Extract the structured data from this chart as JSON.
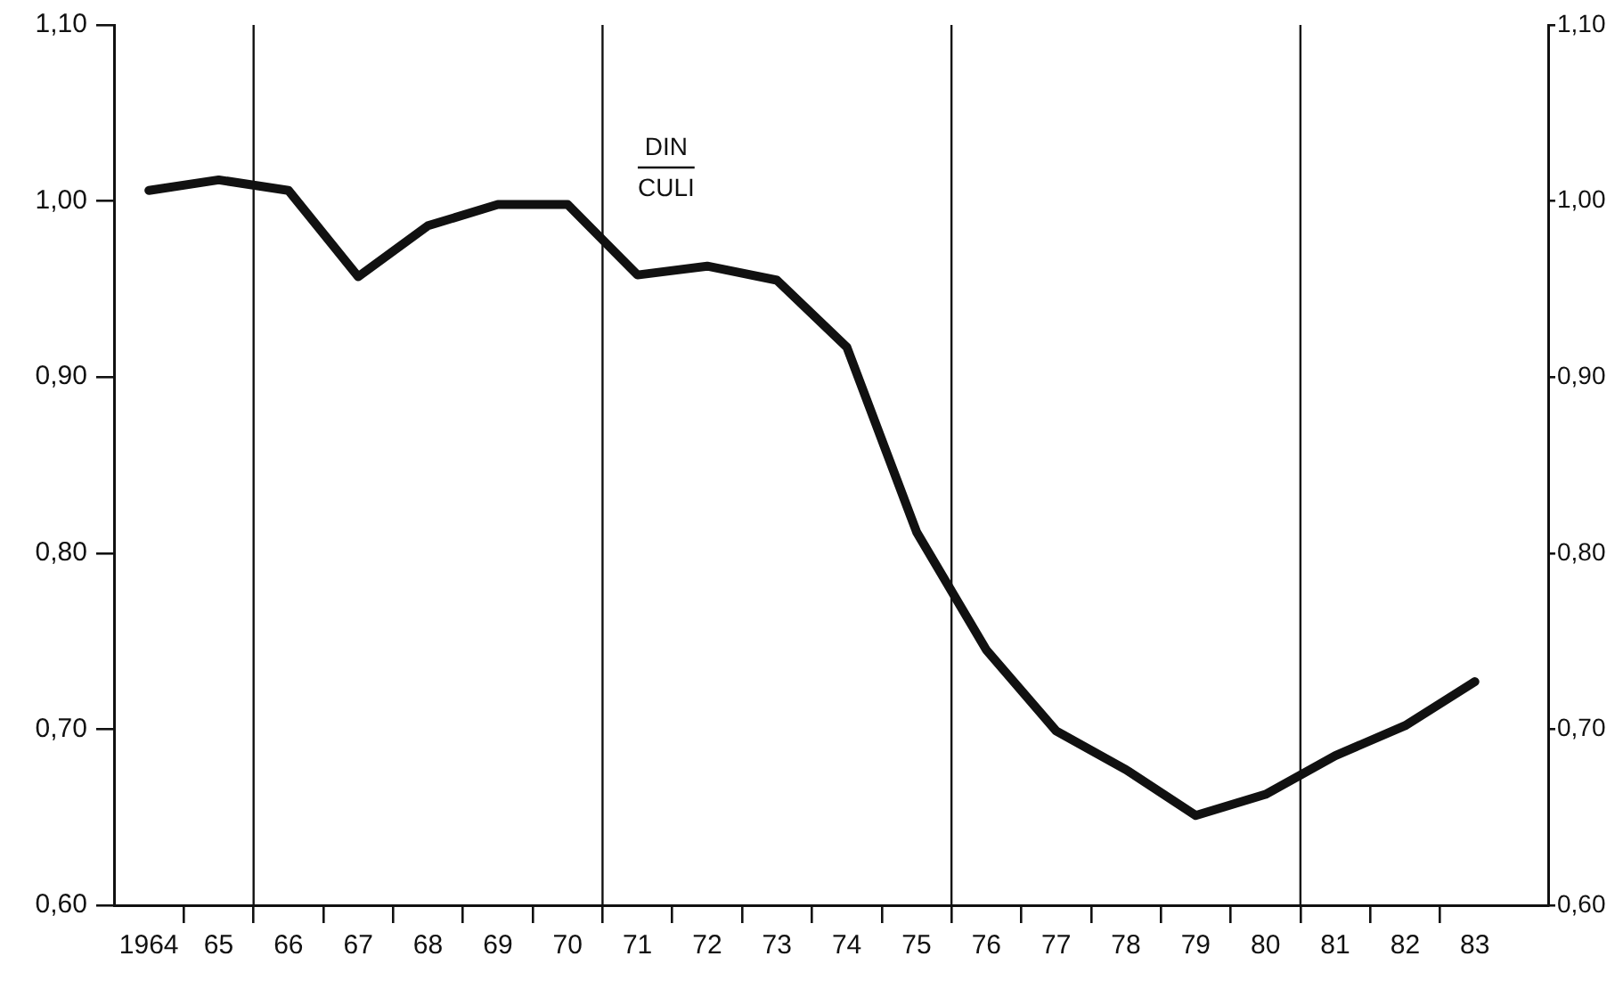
{
  "chart_data": {
    "type": "line",
    "x": [
      1964,
      1965,
      1966,
      1967,
      1968,
      1969,
      1970,
      1971,
      1972,
      1973,
      1974,
      1975,
      1976,
      1977,
      1978,
      1979,
      1980,
      1981,
      1982,
      1983
    ],
    "series": [
      {
        "color": "#111111",
        "values": [
          1.006,
          1.012,
          1.006,
          0.957,
          0.986,
          0.998,
          0.998,
          0.958,
          0.963,
          0.955,
          0.917,
          0.812,
          0.745,
          0.699,
          0.677,
          0.651,
          0.663,
          0.685,
          0.702,
          0.727
        ]
      }
    ],
    "xlim": [
      1963.5,
      1984.05
    ],
    "xticks": [
      {
        "value": 1964,
        "label": "1964"
      },
      {
        "value": 1965,
        "label": "65"
      },
      {
        "value": 1966,
        "label": "66"
      },
      {
        "value": 1967,
        "label": "67"
      },
      {
        "value": 1968,
        "label": "68"
      },
      {
        "value": 1969,
        "label": "69"
      },
      {
        "value": 1970,
        "label": "70"
      },
      {
        "value": 1971,
        "label": "71"
      },
      {
        "value": 1972,
        "label": "72"
      },
      {
        "value": 1973,
        "label": "73"
      },
      {
        "value": 1974,
        "label": "74"
      },
      {
        "value": 1975,
        "label": "75"
      },
      {
        "value": 1976,
        "label": "76"
      },
      {
        "value": 1977,
        "label": "77"
      },
      {
        "value": 1978,
        "label": "78"
      },
      {
        "value": 1979,
        "label": "79"
      },
      {
        "value": 1980,
        "label": "80"
      },
      {
        "value": 1981,
        "label": "81"
      },
      {
        "value": 1982,
        "label": "82"
      },
      {
        "value": 1983,
        "label": "83"
      },
      {
        "value": 1964.5,
        "label": null
      },
      {
        "value": 1965.5,
        "label": null
      },
      {
        "value": 1966.5,
        "label": null
      },
      {
        "value": 1967.5,
        "label": null
      },
      {
        "value": 1968.5,
        "label": null
      },
      {
        "value": 1969.5,
        "label": null
      },
      {
        "value": 1970.5,
        "label": null
      },
      {
        "value": 1971.5,
        "label": null
      },
      {
        "value": 1972.5,
        "label": null
      },
      {
        "value": 1973.5,
        "label": null
      },
      {
        "value": 1974.5,
        "label": null
      },
      {
        "value": 1975.5,
        "label": null
      },
      {
        "value": 1976.5,
        "label": null
      },
      {
        "value": 1977.5,
        "label": null
      },
      {
        "value": 1978.5,
        "label": null
      },
      {
        "value": 1979.5,
        "label": null
      },
      {
        "value": 1980.5,
        "label": null
      },
      {
        "value": 1981.5,
        "label": null
      },
      {
        "value": 1982.5,
        "label": null
      }
    ],
    "ylim": [
      0.6,
      1.1
    ],
    "yticks": [
      {
        "value": 0.6,
        "label": "0,60"
      },
      {
        "value": 0.7,
        "label": "0,70"
      },
      {
        "value": 0.8,
        "label": "0,80"
      },
      {
        "value": 0.9,
        "label": "0,90"
      },
      {
        "value": 1.0,
        "label": "1,00"
      },
      {
        "value": 1.1,
        "label": "1,10"
      }
    ],
    "y2lim": [
      0.6,
      1.1
    ],
    "y2ticks": [
      {
        "value": 0.6,
        "label": "0,60"
      },
      {
        "value": 0.7,
        "label": "0,70"
      },
      {
        "value": 0.8,
        "label": "0,80"
      },
      {
        "value": 0.9,
        "label": "0,90"
      },
      {
        "value": 1.0,
        "label": "1,00"
      },
      {
        "value": 1.1,
        "label": "1,10"
      }
    ],
    "ref_lines": [
      {
        "axis": "x",
        "value": 1965.5
      },
      {
        "axis": "x",
        "value": 1970.5
      },
      {
        "axis": "x",
        "value": 1975.5
      },
      {
        "axis": "x",
        "value": 1980.5
      }
    ],
    "annotations": [
      "DIN",
      "CULI"
    ],
    "marker": "none",
    "line_style": "solid",
    "legend": false
  }
}
